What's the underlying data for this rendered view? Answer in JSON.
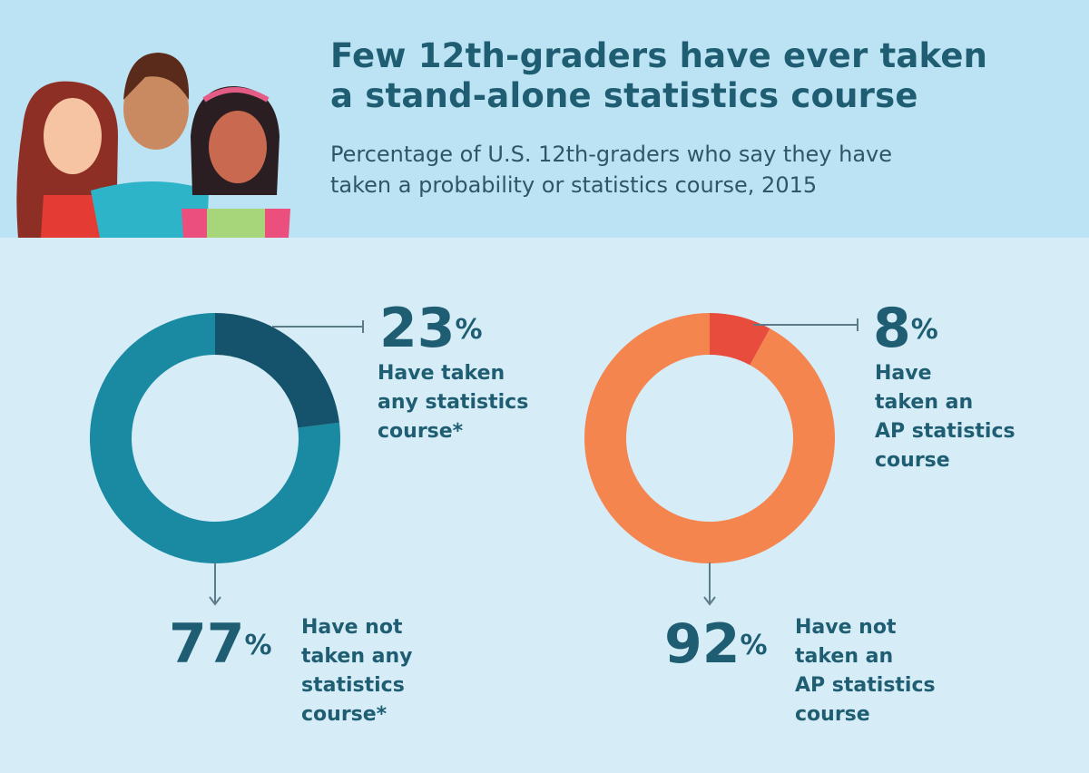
{
  "header": {
    "title_line1": "Few 12th-graders have ever taken",
    "title_line2": "a stand-alone statistics course",
    "subtitle_line1": "Percentage of U.S. 12th-graders who say they have",
    "subtitle_line2": "taken a probability or statistics course, 2015"
  },
  "chart_data": [
    {
      "type": "pie",
      "donut": true,
      "slices": [
        {
          "value": 23,
          "label": "23%",
          "text": "Have taken any statistics course*",
          "color": "#14536b"
        },
        {
          "value": 77,
          "label": "77%",
          "text": "Have not taken any statistics course*",
          "color": "#1a8aa3"
        }
      ]
    },
    {
      "type": "pie",
      "donut": true,
      "slices": [
        {
          "value": 8,
          "label": "8%",
          "text": "Have taken an AP statistics course",
          "color": "#e84c3d"
        },
        {
          "value": 92,
          "label": "92%",
          "text": "Have not taken an AP statistics course",
          "color": "#f5854f"
        }
      ]
    }
  ],
  "labels": {
    "c1_top_num": "23",
    "c1_top_l1": "Have taken",
    "c1_top_l2": "any statistics",
    "c1_top_l3": "course*",
    "c1_bot_num": "77",
    "c1_bot_l1": "Have not",
    "c1_bot_l2": "taken any",
    "c1_bot_l3": "statistics",
    "c1_bot_l4": "course*",
    "c2_top_num": "8",
    "c2_top_l1": "Have",
    "c2_top_l2": "taken an",
    "c2_top_l3": "AP statistics",
    "c2_top_l4": "course",
    "c2_bot_num": "92",
    "c2_bot_l1": "Have not",
    "c2_bot_l2": "taken an",
    "c2_bot_l3": "AP statistics",
    "c2_bot_l4": "course",
    "percent": "%"
  }
}
